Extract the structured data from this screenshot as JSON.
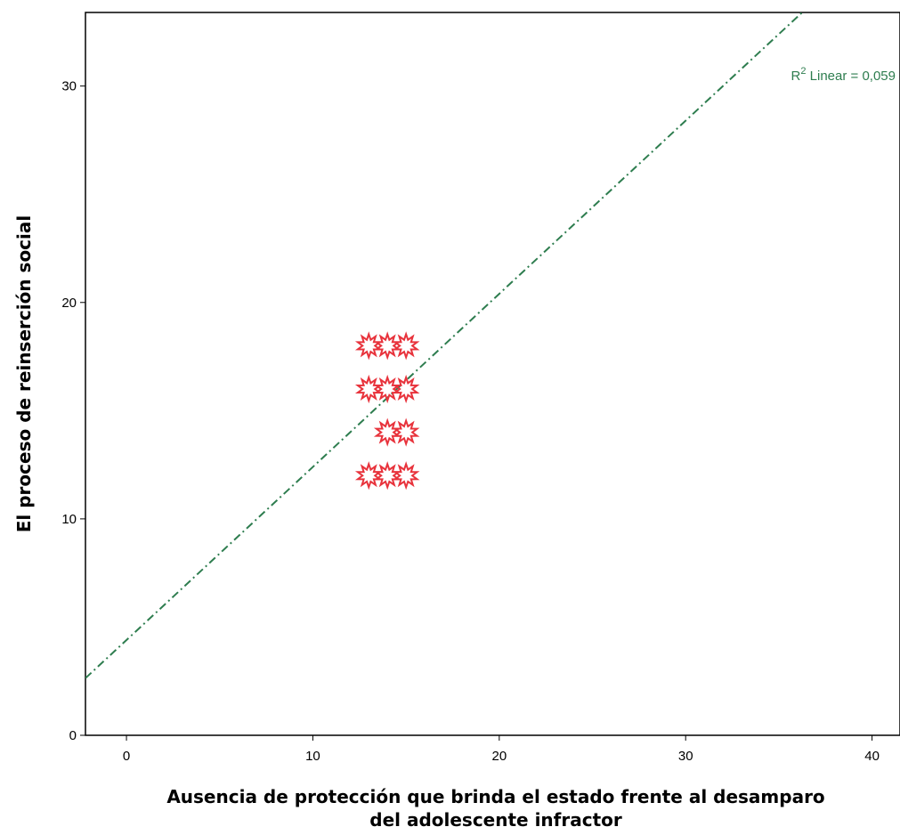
{
  "chart_data": {
    "type": "scatter",
    "title": "",
    "xlabel_lines": [
      "Ausencia de protección que brinda el estado frente al desamparo",
      "del adolescente infractor"
    ],
    "ylabel": "El proceso de reinserción social",
    "xlim": [
      -2.2,
      41.5
    ],
    "ylim": [
      0,
      33.4
    ],
    "xticks": [
      0,
      10,
      20,
      30,
      40
    ],
    "yticks": [
      0,
      10,
      20,
      30
    ],
    "grid": false,
    "points": [
      {
        "x": 13,
        "y": 18
      },
      {
        "x": 14,
        "y": 18
      },
      {
        "x": 15,
        "y": 18
      },
      {
        "x": 13,
        "y": 16
      },
      {
        "x": 14,
        "y": 16
      },
      {
        "x": 15,
        "y": 16
      },
      {
        "x": 14,
        "y": 14
      },
      {
        "x": 15,
        "y": 14
      },
      {
        "x": 13,
        "y": 12
      },
      {
        "x": 14,
        "y": 12
      },
      {
        "x": 15,
        "y": 12
      }
    ],
    "marker_color": "#e8333c",
    "fit_line": {
      "intercept": 4.4,
      "slope": 0.8,
      "color": "#2e7d4f",
      "style": "dash-dot",
      "label_prefix": "R",
      "label_sup": "2",
      "label_suffix": " Linear = 0,059"
    }
  }
}
